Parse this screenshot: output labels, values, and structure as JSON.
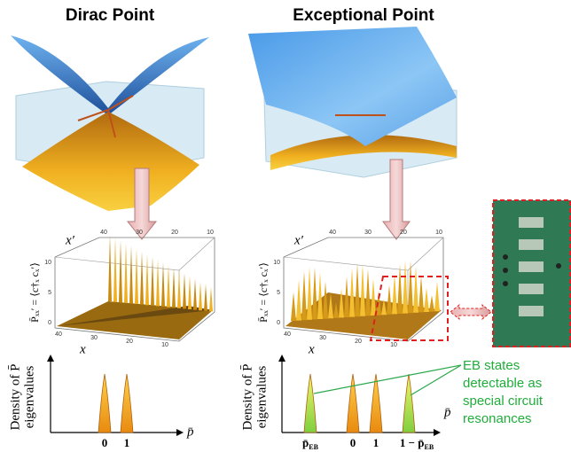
{
  "panels": [
    {
      "title": "Dirac Point",
      "plot": {
        "x_prime_label": "x′",
        "x_label": "x",
        "z_label": "P̄ₓₓ′ = ⟨c†ₓ cₓ′⟩",
        "x_prime_ticks": [
          "40",
          "30",
          "20",
          "10"
        ],
        "z_ticks": [
          "10",
          "5",
          "0"
        ],
        "x_ticks": [
          "40",
          "30",
          "20",
          "10"
        ]
      },
      "density": {
        "y_label_lines": [
          "Density of P̄",
          "eigenvalues"
        ],
        "x_label": "p̄",
        "ticks": [
          {
            "label": "0"
          },
          {
            "label": "1"
          }
        ]
      }
    },
    {
      "title": "Exceptional Point",
      "plot": {
        "x_prime_label": "x′",
        "x_label": "x",
        "z_label": "P̄ₓₓ′ = ⟨c†ₓ cₓ′⟩",
        "x_prime_ticks": [
          "40",
          "30",
          "20",
          "10"
        ],
        "z_ticks": [
          "10",
          "5",
          "0"
        ],
        "x_ticks": [
          "40",
          "30",
          "20",
          "10"
        ]
      },
      "density": {
        "y_label_lines": [
          "Density of P̄",
          "eigenvalues"
        ],
        "x_label": "p̄",
        "ticks": [
          {
            "label": "p̄",
            "sub": "EB"
          },
          {
            "label": "0"
          },
          {
            "label": "1"
          },
          {
            "label": "1 − p̄",
            "sub": "EB"
          }
        ]
      }
    }
  ],
  "annotation": {
    "lines": [
      "EB states",
      "detectable as",
      "special circuit",
      "resonances"
    ]
  }
}
